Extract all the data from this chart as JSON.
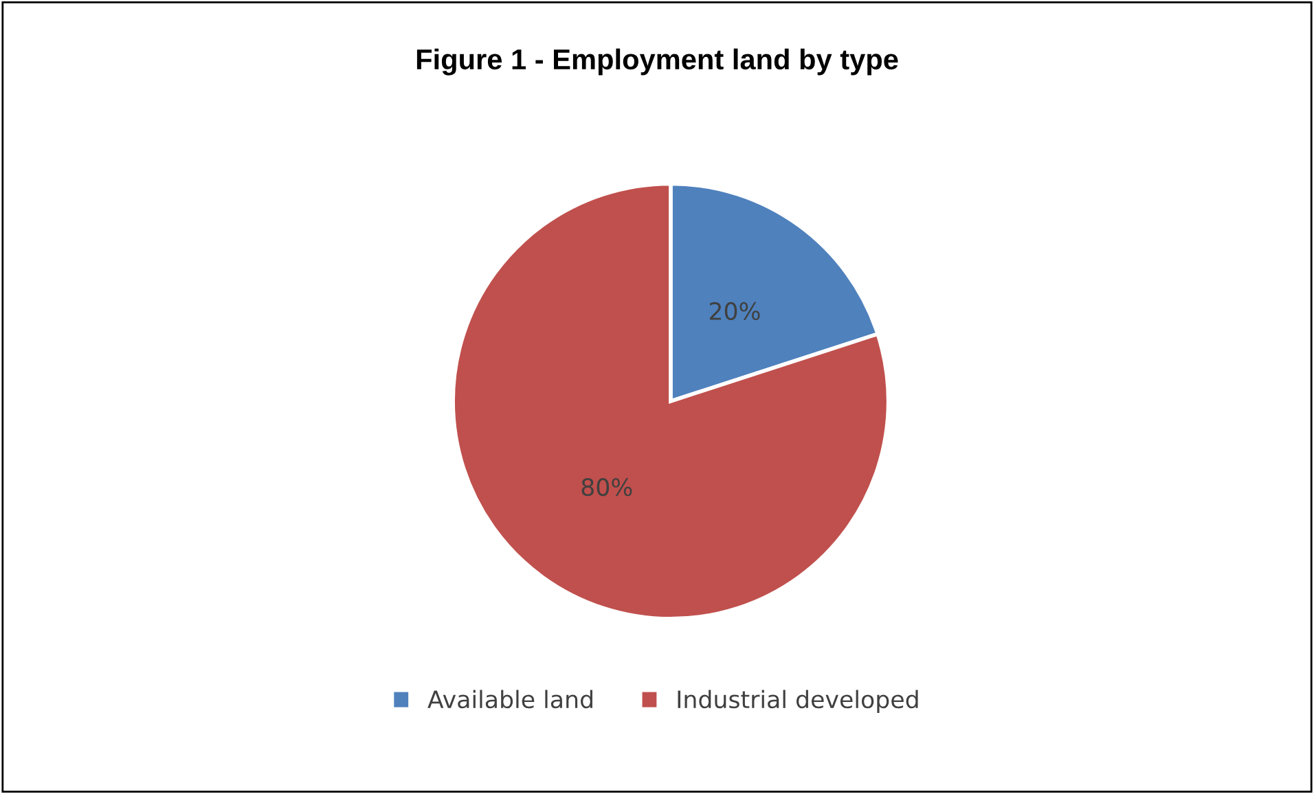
{
  "chart_data": {
    "type": "pie",
    "title": "Figure 1 - Employment land by type",
    "categories": [
      "Available land",
      "Industrial developed"
    ],
    "values": [
      20,
      80
    ],
    "colors": [
      "#4f81bd",
      "#c0504d"
    ],
    "value_labels": [
      "20%",
      "80%"
    ],
    "legend": "bottom"
  }
}
